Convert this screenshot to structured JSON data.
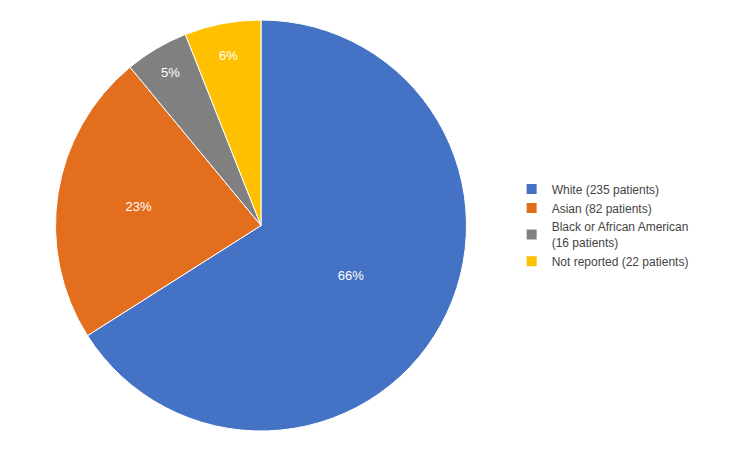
{
  "chart_data": {
    "type": "pie",
    "categories": [
      "White (235 patients)",
      "Asian (82 patients)",
      "Black or African American\n(16 patients)",
      "Not reported (22 patients)"
    ],
    "values": [
      66,
      23,
      5,
      6
    ],
    "value_labels": [
      "66%",
      "23%",
      "5%",
      "6%"
    ],
    "colors": [
      "#4472C4",
      "#E36F1E",
      "#808080",
      "#FFC000"
    ],
    "data_labels": true,
    "legend": "right"
  }
}
